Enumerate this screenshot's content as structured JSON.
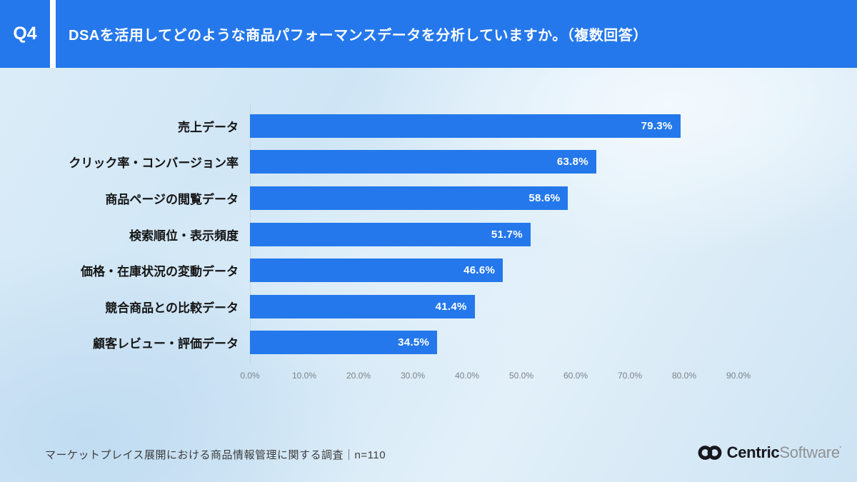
{
  "colors": {
    "accent_blue": "#2478EB",
    "header_text": "#FFFFFF",
    "axis_text": "#7C8288",
    "category_text": "#141414"
  },
  "header": {
    "question_number": "Q4",
    "title": "DSAを活用してどのような商品パフォーマンスデータを分析していますか。（複数回答）"
  },
  "chart_data": {
    "type": "bar",
    "orientation": "horizontal",
    "title": "",
    "xlabel": "",
    "ylabel": "",
    "categories": [
      "売上データ",
      "クリック率・コンバージョン率",
      "商品ページの閲覧データ",
      "検索順位・表示頻度",
      "価格・在庫状況の変動データ",
      "競合商品との比較データ",
      "顧客レビュー・評価データ"
    ],
    "values": [
      79.3,
      63.8,
      58.6,
      51.7,
      46.6,
      41.4,
      34.5
    ],
    "value_labels": [
      "79.3%",
      "63.8%",
      "58.6%",
      "51.7%",
      "46.6%",
      "41.4%",
      "34.5%"
    ],
    "x_ticks": [
      "0.0%",
      "10.0%",
      "20.0%",
      "30.0%",
      "40.0%",
      "50.0%",
      "60.0%",
      "70.0%",
      "80.0%",
      "90.0%"
    ],
    "xlim": [
      0,
      90
    ],
    "bar_color": "#2478EB",
    "grid": false,
    "legend": false
  },
  "footer": {
    "source": "マーケットプレイス展開における商品情報管理に関する調査｜n=110",
    "logo": {
      "centric": "Centric",
      "software": "Software",
      "mark": "’"
    }
  }
}
